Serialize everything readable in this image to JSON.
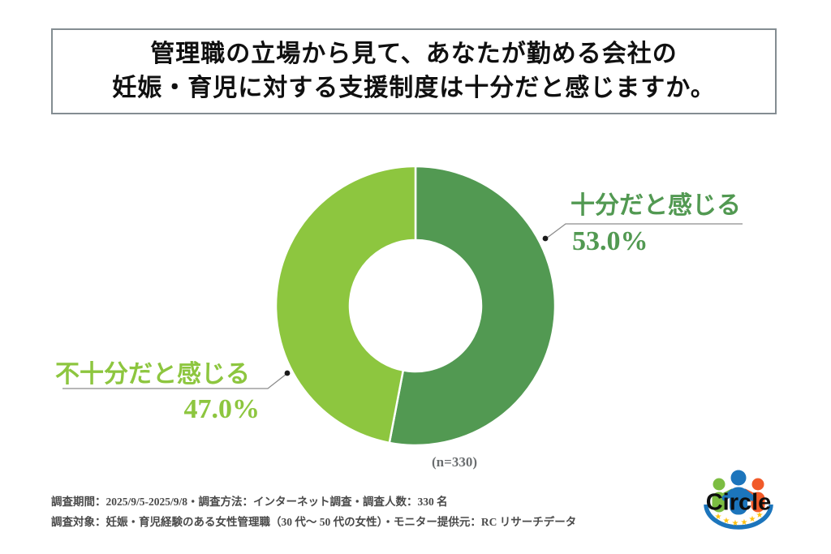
{
  "title": {
    "line1": "管理職の立場から見て、あなたが勤める会社の",
    "line2": "妊娠・育児に対する支援制度は十分だと感じますか。"
  },
  "chart_data": {
    "type": "pie",
    "subtype": "donut",
    "title": "管理職の立場から見て、あなたが勤める会社の妊娠・育児に対する支援制度は十分だと感じますか。",
    "labels": [
      "十分だと感じる",
      "不十分だと感じる"
    ],
    "values": [
      53.0,
      47.0
    ],
    "value_labels": [
      "53.0%",
      "47.0%"
    ],
    "colors": [
      "#529952",
      "#8DC63F"
    ],
    "start_angle_deg": -90,
    "direction": "clockwise",
    "inner_radius_ratio": 0.47,
    "sample_note": "(n=330)"
  },
  "footer": {
    "line1": "調査期間：2025/9/5-2025/9/8・調査方法：インターネット調査・調査人数：330 名",
    "line2": "調査対象：妊娠・育児経験のある女性管理職（30 代～ 50 代の女性）・モニター提供元：RC リサーチデータ"
  },
  "logo": {
    "text": "Circle",
    "star": "★",
    "colors": {
      "blue": "#1C75BC",
      "green": "#7CBD42",
      "orange": "#F15A29",
      "star_yellow": "#FFC20E",
      "text_black": "#0d0d0d"
    }
  }
}
